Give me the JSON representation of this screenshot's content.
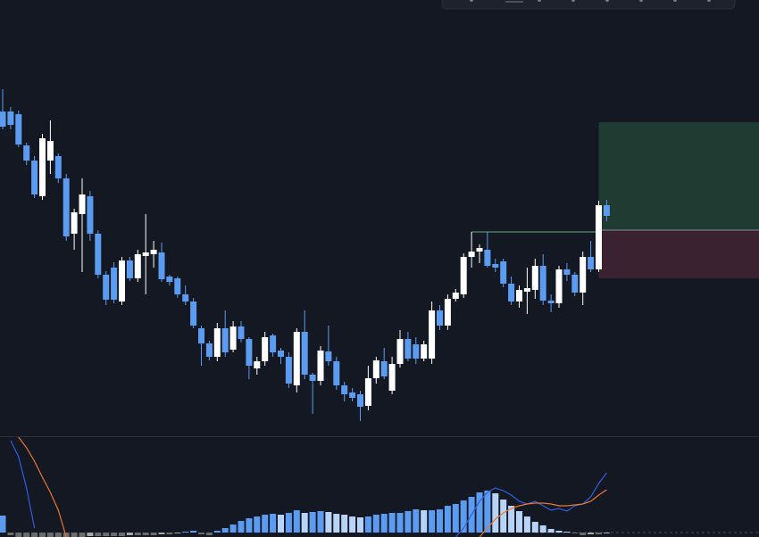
{
  "chart_data": [
    {
      "type": "candlestick",
      "open": [
        475,
        475,
        472,
        437,
        420,
        380,
        420,
        425,
        400,
        338,
        360,
        380,
        338,
        292,
        300,
        262,
        308,
        288,
        313,
        315,
        317,
        290,
        288,
        270,
        262,
        232,
        215,
        200,
        232,
        208,
        234,
        220,
        187,
        195,
        224,
        207,
        200,
        168,
        228,
        180,
        173,
        206,
        195,
        168,
        160,
        158,
        145,
        176,
        195,
        162,
        192,
        220,
        214,
        198,
        198,
        252,
        235,
        265,
        270,
        312,
        318,
        320,
        304,
        307,
        282,
        262,
        273,
        275,
        302,
        263,
        260,
        298,
        292,
        272,
        312,
        298,
        370
      ],
      "high": [
        500,
        480,
        476,
        440,
        425,
        450,
        465,
        428,
        405,
        366,
        400,
        386,
        342,
        296,
        306,
        312,
        312,
        320,
        360,
        330,
        328,
        292,
        290,
        280,
        266,
        235,
        218,
        238,
        252,
        240,
        240,
        222,
        200,
        228,
        226,
        210,
        205,
        232,
        252,
        182,
        212,
        235,
        200,
        172,
        165,
        162,
        190,
        200,
        210,
        200,
        230,
        228,
        222,
        218,
        262,
        258,
        270,
        276,
        316,
        340,
        326,
        340,
        310,
        310,
        290,
        280,
        300,
        310,
        315,
        270,
        302,
        305,
        295,
        318,
        330,
        375,
        376
      ],
      "low": [
        455,
        455,
        435,
        415,
        378,
        376,
        405,
        395,
        330,
        320,
        295,
        330,
        288,
        258,
        260,
        258,
        285,
        284,
        270,
        300,
        284,
        280,
        266,
        258,
        232,
        190,
        196,
        195,
        200,
        205,
        216,
        175,
        180,
        190,
        200,
        192,
        165,
        160,
        175,
        136,
        168,
        190,
        163,
        150,
        150,
        128,
        140,
        170,
        175,
        158,
        188,
        195,
        192,
        195,
        192,
        230,
        230,
        262,
        266,
        300,
        305,
        300,
        295,
        278,
        258,
        255,
        248,
        265,
        258,
        250,
        255,
        285,
        268,
        258,
        295,
        295,
        352
      ],
      "close": [
        458,
        460,
        438,
        420,
        382,
        445,
        442,
        400,
        335,
        362,
        382,
        338,
        292,
        264,
        264,
        308,
        288,
        315,
        317,
        320,
        287,
        284,
        270,
        262,
        235,
        215,
        200,
        232,
        205,
        234,
        220,
        190,
        195,
        222,
        205,
        200,
        170,
        228,
        180,
        173,
        207,
        195,
        168,
        158,
        154,
        144,
        176,
        196,
        178,
        192,
        220,
        198,
        198,
        214,
        252,
        235,
        265,
        272,
        312,
        318,
        322,
        302,
        300,
        282,
        262,
        275,
        277,
        302,
        263,
        260,
        298,
        292,
        272,
        312,
        298,
        370,
        358
      ],
      "ylim": [
        112,
        600
      ],
      "colors": {
        "up": "#ffffff",
        "down": "#5b9cf0"
      },
      "position": {
        "target": 463,
        "entry": 342,
        "stop": 288,
        "start": 75
      },
      "level_line": {
        "value": 340,
        "start": 59
      }
    },
    {
      "type": "macd",
      "histogram": [
        19,
        -3,
        -5,
        -5,
        -5,
        -5,
        -5,
        -5,
        -5,
        -5,
        -5,
        -4,
        -4,
        -4,
        -4,
        -4,
        -3,
        -3,
        -3,
        -3,
        -2,
        -2,
        -1,
        1,
        2,
        -2,
        -3,
        2,
        5,
        9,
        13,
        16,
        18,
        20,
        21,
        20,
        22,
        25,
        22,
        23,
        24,
        23,
        21,
        20,
        18,
        17,
        18,
        20,
        21,
        22,
        22,
        24,
        26,
        25,
        25,
        26,
        30,
        32,
        36,
        40,
        45,
        47,
        44,
        37,
        30,
        24,
        18,
        12,
        8,
        4,
        2,
        1,
        -1,
        -3,
        -2,
        -2,
        -1
      ],
      "lines": [
        {
          "color": "#2f5fe0",
          "values": [
            null,
            103,
            85,
            50,
            5,
            null,
            null,
            null,
            null,
            null,
            null,
            null,
            null,
            null,
            null,
            null,
            null,
            null,
            null,
            null,
            null,
            null,
            null,
            null,
            null,
            null,
            null,
            null,
            null,
            null,
            null,
            null,
            null,
            null,
            null,
            null,
            null,
            null,
            null,
            null,
            null,
            null,
            null,
            null,
            null,
            null,
            null,
            null,
            null,
            null,
            null,
            null,
            null,
            null,
            null,
            null,
            null,
            -5,
            5,
            20,
            35,
            45,
            50,
            47,
            42,
            35,
            32,
            35,
            30,
            25,
            27,
            24,
            30,
            32,
            40,
            55,
            67
          ]
        },
        {
          "color": "#e8772e",
          "values": [
            null,
            null,
            107,
            95,
            80,
            62,
            45,
            25,
            -5,
            null,
            null,
            null,
            null,
            null,
            null,
            null,
            null,
            null,
            null,
            null,
            null,
            null,
            null,
            null,
            null,
            null,
            null,
            null,
            null,
            null,
            null,
            null,
            null,
            null,
            null,
            null,
            null,
            null,
            null,
            null,
            null,
            null,
            null,
            null,
            null,
            null,
            null,
            null,
            null,
            null,
            null,
            null,
            null,
            null,
            null,
            null,
            null,
            null,
            null,
            null,
            -5,
            5,
            15,
            22,
            27,
            30,
            32,
            33,
            33,
            32,
            30,
            30,
            31,
            32,
            35,
            42,
            48
          ]
        }
      ],
      "ylim": [
        -5,
        107
      ],
      "colors": {
        "up_rising": "#5b9cf0",
        "up_falling": "#b7d3f7",
        "down_falling": "#6b6b6b",
        "down_rising": "#a8a8a8"
      }
    }
  ]
}
